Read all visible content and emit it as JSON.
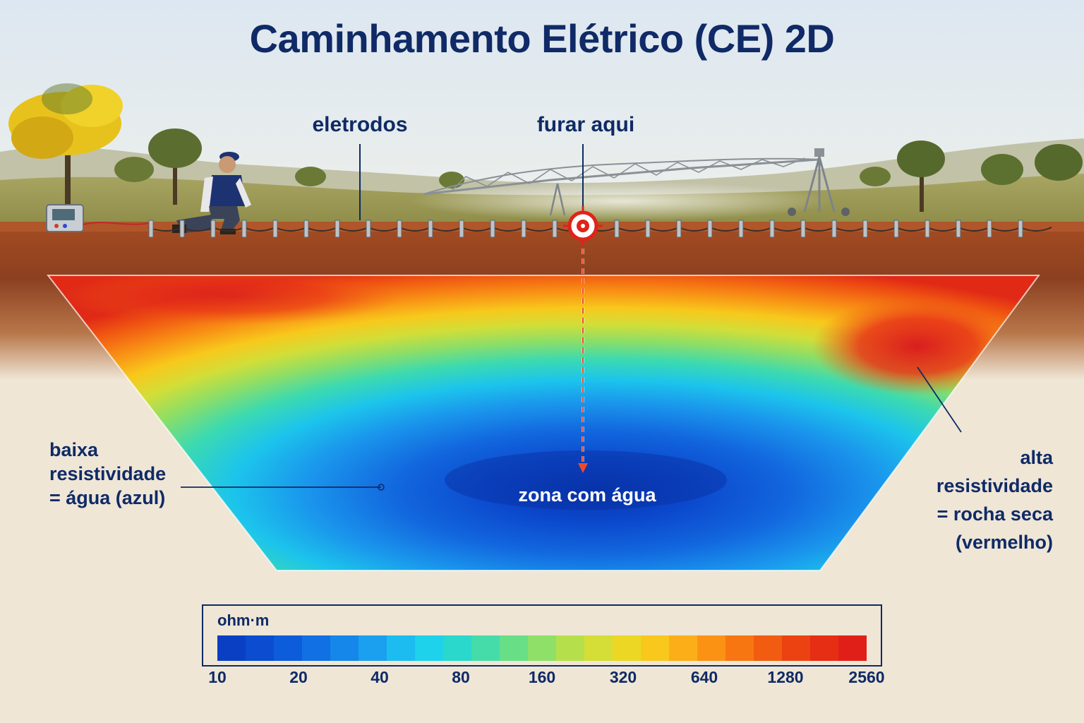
{
  "title": "Caminhamento Elétrico (CE) 2D",
  "labels": {
    "electrodes": "eletrodos",
    "drill_here": "furar aqui",
    "low_resistivity": "baixa\nresistividade\n= água (azul)",
    "high_resistivity": "alta\nresistividade\n= rocha seca\n(vermelho)",
    "water_zone": "zona com água"
  },
  "legend": {
    "unit": "ohm·m",
    "ticks": [
      "10",
      "20",
      "40",
      "80",
      "160",
      "320",
      "640",
      "1280",
      "2560"
    ],
    "colors": [
      "#0a3fc4",
      "#0b4cd0",
      "#0d5cdc",
      "#1070e4",
      "#1586ea",
      "#1aa0ee",
      "#1cbcf0",
      "#1dd2ea",
      "#2ad8cc",
      "#45dcaa",
      "#68de86",
      "#8fe068",
      "#b5e04c",
      "#d4de36",
      "#ecd824",
      "#f8c81c",
      "#fcae18",
      "#fc9214",
      "#f87612",
      "#f25c10",
      "#ec4212",
      "#e62e14",
      "#e02018"
    ]
  },
  "colors": {
    "text": "#0f2a66",
    "target": "#e0231a",
    "sky_top": "#dfe8f2",
    "soil": "#9a4a24"
  }
}
